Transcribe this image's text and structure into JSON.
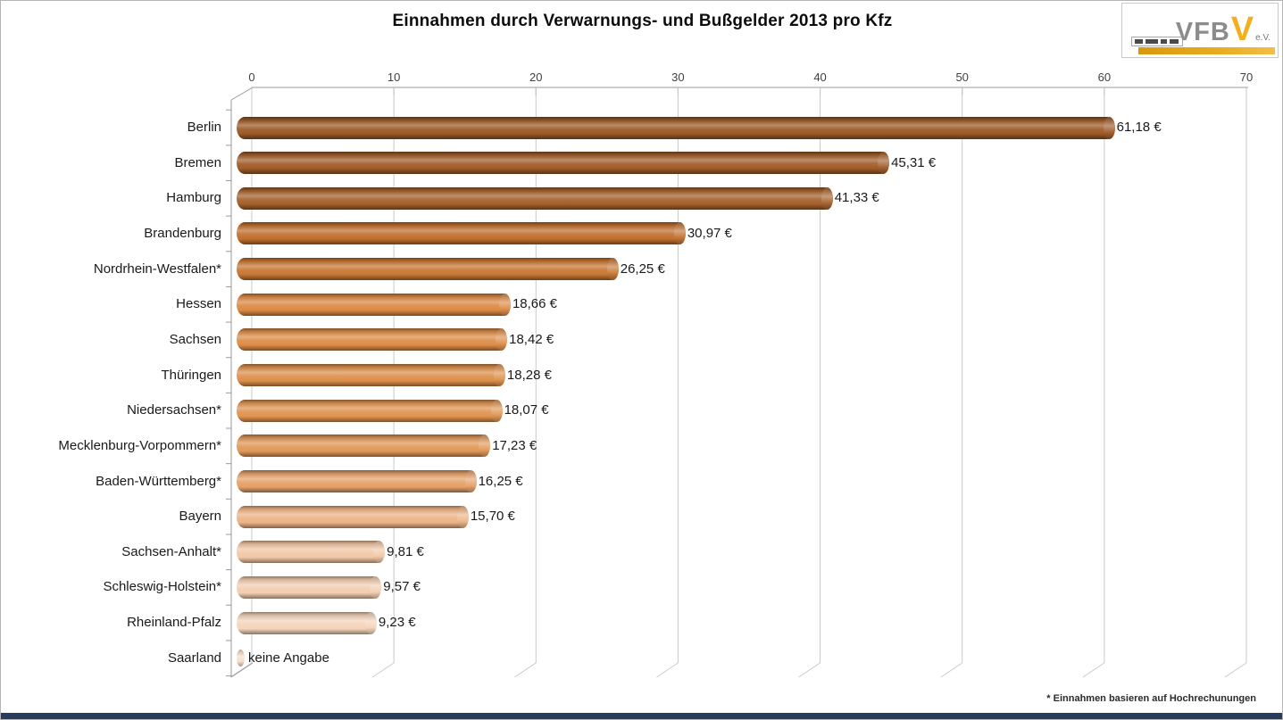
{
  "page": {
    "title": "Einnahmen durch Verwarnungs- und Bußgelder 2013 pro Kfz",
    "footnote": "* Einnahmen basieren auf Hochrechunungen"
  },
  "logo": {
    "text_vfb": "VFB",
    "text_v": "V",
    "text_ev": "e.V.",
    "gold_color": "#e8ab1d"
  },
  "chart_data": {
    "type": "bar",
    "orientation": "horizontal",
    "title": "Einnahmen durch Verwarnungs- und Bußgelder 2013 pro Kfz",
    "xlabel": "",
    "ylabel": "",
    "x_axis": {
      "position": "top",
      "range": [
        0,
        70
      ],
      "ticks": [
        0,
        10,
        20,
        30,
        40,
        50,
        60,
        70
      ]
    },
    "grid": true,
    "legend": null,
    "categories": [
      "Berlin",
      "Bremen",
      "Hamburg",
      "Brandenburg",
      "Nordrhein-Westfalen*",
      "Hessen",
      "Sachsen",
      "Thüringen",
      "Niedersachsen*",
      "Mecklenburg-Vorpommern*",
      "Baden-Württemberg*",
      "Bayern",
      "Sachsen-Anhalt*",
      "Schleswig-Holstein*",
      "Rheinland-Pfalz",
      "Saarland"
    ],
    "values": [
      61.18,
      45.31,
      41.33,
      30.97,
      26.25,
      18.66,
      18.42,
      18.28,
      18.07,
      17.23,
      16.25,
      15.7,
      9.81,
      9.57,
      9.23,
      null
    ],
    "value_labels": [
      "61,18 €",
      "45,31 €",
      "41,33 €",
      "30,97 €",
      "26,25 €",
      "18,66 €",
      "18,42 €",
      "18,28 €",
      "18,07 €",
      "17,23 €",
      "16,25 €",
      "15,70 €",
      "9,81 €",
      "9,57 €",
      "9,23 €",
      "keine Angabe"
    ],
    "bar_colors": [
      "#9C5926",
      "#A05C28",
      "#A4602B",
      "#C06F2E",
      "#C77632",
      "#DC8943",
      "#DD8C47",
      "#DD8F4B",
      "#DF9350",
      "#E09756",
      "#E5A067",
      "#ECB385",
      "#F1C7A6",
      "#F2CDB0",
      "#F4D4BA",
      "#F6DDC8"
    ]
  }
}
